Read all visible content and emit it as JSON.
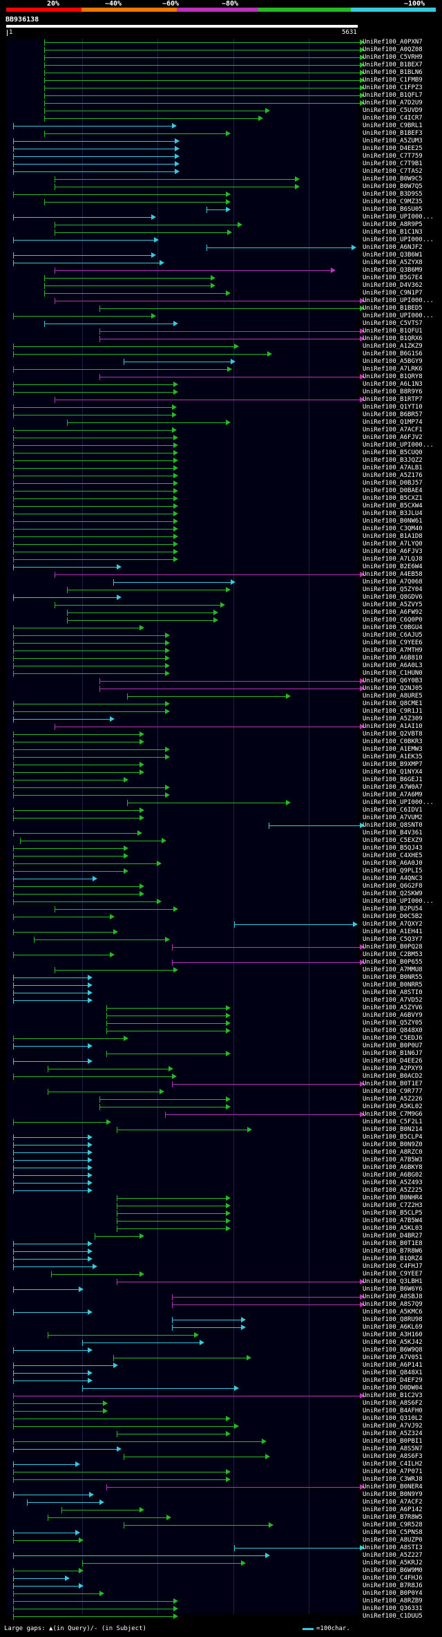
{
  "legend": {
    "labels": [
      "20%",
      "~40%",
      "~60%",
      "~80%",
      "~100%"
    ],
    "colors": [
      "#ff0000",
      "#ee7700",
      "#bb33bb",
      "#22bb22",
      "#33ccdd"
    ]
  },
  "query": {
    "id": "BB936138",
    "ruler_start": "1",
    "ruler_end": "5631"
  },
  "hits": [
    {
      "label": "UniRef100_A0PXN7"
    },
    {
      "label": "UniRef100_A0QZ08"
    },
    {
      "label": "UniRef100_C5VRH9"
    },
    {
      "label": "UniRef100_B1BEX7"
    },
    {
      "label": "UniRef100_B1BLN6"
    },
    {
      "label": "UniRef100_C1FMB9"
    },
    {
      "label": "UniRef100_C1FPZ3"
    },
    {
      "label": "UniRef100_B1QFL7"
    },
    {
      "label": "UniRef100_A7D2U9"
    },
    {
      "label": "UniRef100_C5UVD9"
    },
    {
      "label": "UniRef100_C4ICR7"
    },
    {
      "label": "UniRef100_C9BRL1"
    },
    {
      "label": "UniRef100_B1BEF3"
    },
    {
      "label": "UniRef100_A5ZUM3"
    },
    {
      "label": "UniRef100_D4EE25"
    },
    {
      "label": "UniRef100_C7T759"
    },
    {
      "label": "UniRef100_C7T9B1"
    },
    {
      "label": "UniRef100_C7TAS2"
    },
    {
      "label": "UniRef100_B0W9C5"
    },
    {
      "label": "UniRef100_B0W7Q5"
    },
    {
      "label": "UniRef100_B3D9S5"
    },
    {
      "label": "UniRef100_C9MZ35"
    },
    {
      "label": "UniRef100_B6SU05"
    },
    {
      "label": "UniRef100_UPI000..."
    },
    {
      "label": "UniRef100_A8R9P5"
    },
    {
      "label": "UniRef100_B1C1N3"
    },
    {
      "label": "UniRef100_UPI000..."
    },
    {
      "label": "UniRef100_A6NJF2"
    },
    {
      "label": "UniRef100_Q3B6W1"
    },
    {
      "label": "UniRef100_A5ZYX8"
    },
    {
      "label": "UniRef100_Q3B6M9"
    },
    {
      "label": "UniRef100_B5G7E4"
    },
    {
      "label": "UniRef100_D4V362"
    },
    {
      "label": "UniRef100_C9N1P7"
    },
    {
      "label": "UniRef100_UPI000..."
    },
    {
      "label": "UniRef100_B1BED5"
    },
    {
      "label": "UniRef100_UPI000..."
    },
    {
      "label": "UniRef100_C5VTS7"
    },
    {
      "label": "UniRef100_B1QFU1"
    },
    {
      "label": "UniRef100_B1QRX6"
    },
    {
      "label": "UniRef100_A1ZKZ9"
    },
    {
      "label": "UniRef100_B6G1S6"
    },
    {
      "label": "UniRef100_A5BGY9"
    },
    {
      "label": "UniRef100_A7LRK6"
    },
    {
      "label": "UniRef100_B1QRY8"
    },
    {
      "label": "UniRef100_A6L1N3"
    },
    {
      "label": "UniRef100_B8R9Y6"
    },
    {
      "label": "UniRef100_B1RTP7"
    },
    {
      "label": "UniRef100_Q1YT10"
    },
    {
      "label": "UniRef100_B6BR57"
    },
    {
      "label": "UniRef100_Q1MP74"
    },
    {
      "label": "UniRef100_A7ACF1"
    },
    {
      "label": "UniRef100_A6FJV2"
    },
    {
      "label": "UniRef100_UPI000..."
    },
    {
      "label": "UniRef100_B5CUQ0"
    },
    {
      "label": "UniRef100_B3JQZ2"
    },
    {
      "label": "UniRef100_A7ALB1"
    },
    {
      "label": "UniRef100_A5Z176"
    },
    {
      "label": "UniRef100_D0BJ57"
    },
    {
      "label": "UniRef100_D0BAE4"
    },
    {
      "label": "UniRef100_B5CXZ1"
    },
    {
      "label": "UniRef100_B5CXW4"
    },
    {
      "label": "UniRef100_B3JLU4"
    },
    {
      "label": "UniRef100_B0NW61"
    },
    {
      "label": "UniRef100_C3QM40"
    },
    {
      "label": "UniRef100_B1A1D8"
    },
    {
      "label": "UniRef100_A7LYQ0"
    },
    {
      "label": "UniRef100_A6FJV3"
    },
    {
      "label": "UniRef100_A7LQJ8"
    },
    {
      "label": "UniRef100_B2E6W4"
    },
    {
      "label": "UniRef100_A4EB58"
    },
    {
      "label": "UniRef100_A7Q068"
    },
    {
      "label": "UniRef100_Q5ZY04"
    },
    {
      "label": "UniRef100_Q8GDV6"
    },
    {
      "label": "UniRef100_A5ZVY5"
    },
    {
      "label": "UniRef100_A6FW92"
    },
    {
      "label": "UniRef100_C6Q0P0"
    },
    {
      "label": "UniRef100_C0BGU4"
    },
    {
      "label": "UniRef100_C6AJU5"
    },
    {
      "label": "UniRef100_C9YEE6"
    },
    {
      "label": "UniRef100_A7MTH9"
    },
    {
      "label": "UniRef100_A6B810"
    },
    {
      "label": "UniRef100_A6A0L3"
    },
    {
      "label": "UniRef100_C1HUN0"
    },
    {
      "label": "UniRef100_Q6Y0B3"
    },
    {
      "label": "UniRef100_Q2NJ05"
    },
    {
      "label": "UniRef100_A8URE5"
    },
    {
      "label": "UniRef100_Q8CME1"
    },
    {
      "label": "UniRef100_C9R1J1"
    },
    {
      "label": "UniRef100_A5Z309"
    },
    {
      "label": "UniRef100_A1AI10"
    },
    {
      "label": "UniRef100_Q2VBT8"
    },
    {
      "label": "UniRef100_C0BKR3"
    },
    {
      "label": "UniRef100_A1EMW3"
    },
    {
      "label": "UniRef100_A1EK35"
    },
    {
      "label": "UniRef100_B9XMP7"
    },
    {
      "label": "UniRef100_Q1NYX4"
    },
    {
      "label": "UniRef100_B6GEJ1"
    },
    {
      "label": "UniRef100_A7W0A7"
    },
    {
      "label": "UniRef100_A7A6M9"
    },
    {
      "label": "UniRef100_UPI000..."
    },
    {
      "label": "UniRef100_C6IDV1"
    },
    {
      "label": "UniRef100_A7VUM2"
    },
    {
      "label": "UniRef100_Q8SNT0"
    },
    {
      "label": "UniRef100_B4V361"
    },
    {
      "label": "UniRef100_C5EXZ9"
    },
    {
      "label": "UniRef100_B5QJ43"
    },
    {
      "label": "UniRef100_C4XHE5"
    },
    {
      "label": "UniRef100_A6A0J0"
    },
    {
      "label": "UniRef100_Q9PLI5"
    },
    {
      "label": "UniRef100_A4QNC3"
    },
    {
      "label": "UniRef100_Q6G2F8"
    },
    {
      "label": "UniRef100_Q2SKW9"
    },
    {
      "label": "UniRef100_UPI000..."
    },
    {
      "label": "UniRef100_B2PU54"
    },
    {
      "label": "UniRef100_D0C5B2"
    },
    {
      "label": "UniRef100_A7QXY2"
    },
    {
      "label": "UniRef100_A1EH41"
    },
    {
      "label": "UniRef100_C5Q3Y7"
    },
    {
      "label": "UniRef100_B0PQ28"
    },
    {
      "label": "UniRef100_C2BM53"
    },
    {
      "label": "UniRef100_B0P655"
    },
    {
      "label": "UniRef100_A7MMU8"
    },
    {
      "label": "UniRef100_B0NR55"
    },
    {
      "label": "UniRef100_B0NRR5"
    },
    {
      "label": "UniRef100_A8STI0"
    },
    {
      "label": "UniRef100_A7VD52"
    },
    {
      "label": "UniRef100_A5ZYV6"
    },
    {
      "label": "UniRef100_A6BVY9"
    },
    {
      "label": "UniRef100_Q5ZY05"
    },
    {
      "label": "UniRef100_Q848X0"
    },
    {
      "label": "UniRef100_C5EDJ6"
    },
    {
      "label": "UniRef100_B0P0U7"
    },
    {
      "label": "UniRef100_B1N6J7"
    },
    {
      "label": "UniRef100_D4EE26"
    },
    {
      "label": "UniRef100_A2PXY9"
    },
    {
      "label": "UniRef100_B0ACD2"
    },
    {
      "label": "UniRef100_B0T1E7"
    },
    {
      "label": "UniRef100_C9R777"
    },
    {
      "label": "UniRef100_A5Z226"
    },
    {
      "label": "UniRef100_A5KL02"
    },
    {
      "label": "UniRef100_C7M9G6"
    },
    {
      "label": "UniRef100_C5F2L1"
    },
    {
      "label": "UniRef100_B0N214"
    },
    {
      "label": "UniRef100_B5CLP4"
    },
    {
      "label": "UniRef100_B0N9Z0"
    },
    {
      "label": "UniRef100_A8RZC0"
    },
    {
      "label": "UniRef100_A7B5W3"
    },
    {
      "label": "UniRef100_A6BKY8"
    },
    {
      "label": "UniRef100_A6BG02"
    },
    {
      "label": "UniRef100_A5Z493"
    },
    {
      "label": "UniRef100_A5Z225"
    },
    {
      "label": "UniRef100_B0NHR4"
    },
    {
      "label": "UniRef100_C7Z2H3"
    },
    {
      "label": "UniRef100_B5CLP5"
    },
    {
      "label": "UniRef100_A7B5W4"
    },
    {
      "label": "UniRef100_A5KL03"
    },
    {
      "label": "UniRef100_D4BR27"
    },
    {
      "label": "UniRef100_B0T1E8"
    },
    {
      "label": "UniRef100_B7R8W6"
    },
    {
      "label": "UniRef100_B1QRZ4"
    },
    {
      "label": "UniRef100_C4FHJ7"
    },
    {
      "label": "UniRef100_C9YEE7"
    },
    {
      "label": "UniRef100_Q3LBH1"
    },
    {
      "label": "UniRef100_B6W6Y6"
    },
    {
      "label": "UniRef100_A8SBJ8"
    },
    {
      "label": "UniRef100_A8S7Q9"
    },
    {
      "label": "UniRef100_A5KMC6"
    },
    {
      "label": "UniRef100_Q8RU98"
    },
    {
      "label": "UniRef100_A6KL69"
    },
    {
      "label": "UniRef100_A3H160"
    },
    {
      "label": "UniRef100_A5KJ42"
    },
    {
      "label": "UniRef100_B6W9Q8"
    },
    {
      "label": "UniRef100_A7V051"
    },
    {
      "label": "UniRef100_A6P141"
    },
    {
      "label": "UniRef100_Q848X1"
    },
    {
      "label": "UniRef100_D4EF29"
    },
    {
      "label": "UniRef100_D0DW04"
    },
    {
      "label": "UniRef100_B1C2V3"
    },
    {
      "label": "UniRef100_A8S6F2"
    },
    {
      "label": "UniRef100_B4AFH0"
    },
    {
      "label": "UniRef100_Q310L2"
    },
    {
      "label": "UniRef100_A7VJ92"
    },
    {
      "label": "UniRef100_A5Z324"
    },
    {
      "label": "UniRef100_B0PBI1"
    },
    {
      "label": "UniRef100_A8S5N7"
    },
    {
      "label": "UniRef100_A8S6F3"
    },
    {
      "label": "UniRef100_C4ILH2"
    },
    {
      "label": "UniRef100_A7P071"
    },
    {
      "label": "UniRef100_C3WRJ8"
    },
    {
      "label": "UniRef100_B0NER4"
    },
    {
      "label": "UniRef100_B0N9Y9"
    },
    {
      "label": "UniRef100_A7ACF2"
    },
    {
      "label": "UniRef100_A6P142"
    },
    {
      "label": "UniRef100_B7R8W5"
    },
    {
      "label": "UniRef100_C9R528"
    },
    {
      "label": "UniRef100_C5PNS8"
    },
    {
      "label": "UniRef100_A8UZP0"
    },
    {
      "label": "UniRef100_A8STI3"
    },
    {
      "label": "UniRef100_A5Z227"
    },
    {
      "label": "UniRef100_A5KRJ2"
    },
    {
      "label": "UniRef100_B6W9M0"
    },
    {
      "label": "UniRef100_C4FHJ6"
    },
    {
      "label": "UniRef100_B7R8J6"
    },
    {
      "label": "UniRef100_B0P0Y4"
    },
    {
      "label": "UniRef100_A8RZB9"
    },
    {
      "label": "UniRef100_Q36331"
    },
    {
      "label": "UniRef100_C1DUU5"
    }
  ],
  "footer": {
    "gaps_text": "Large gaps: ▲(in Query)/- (in Subject)",
    "scale_text": "=100char."
  }
}
